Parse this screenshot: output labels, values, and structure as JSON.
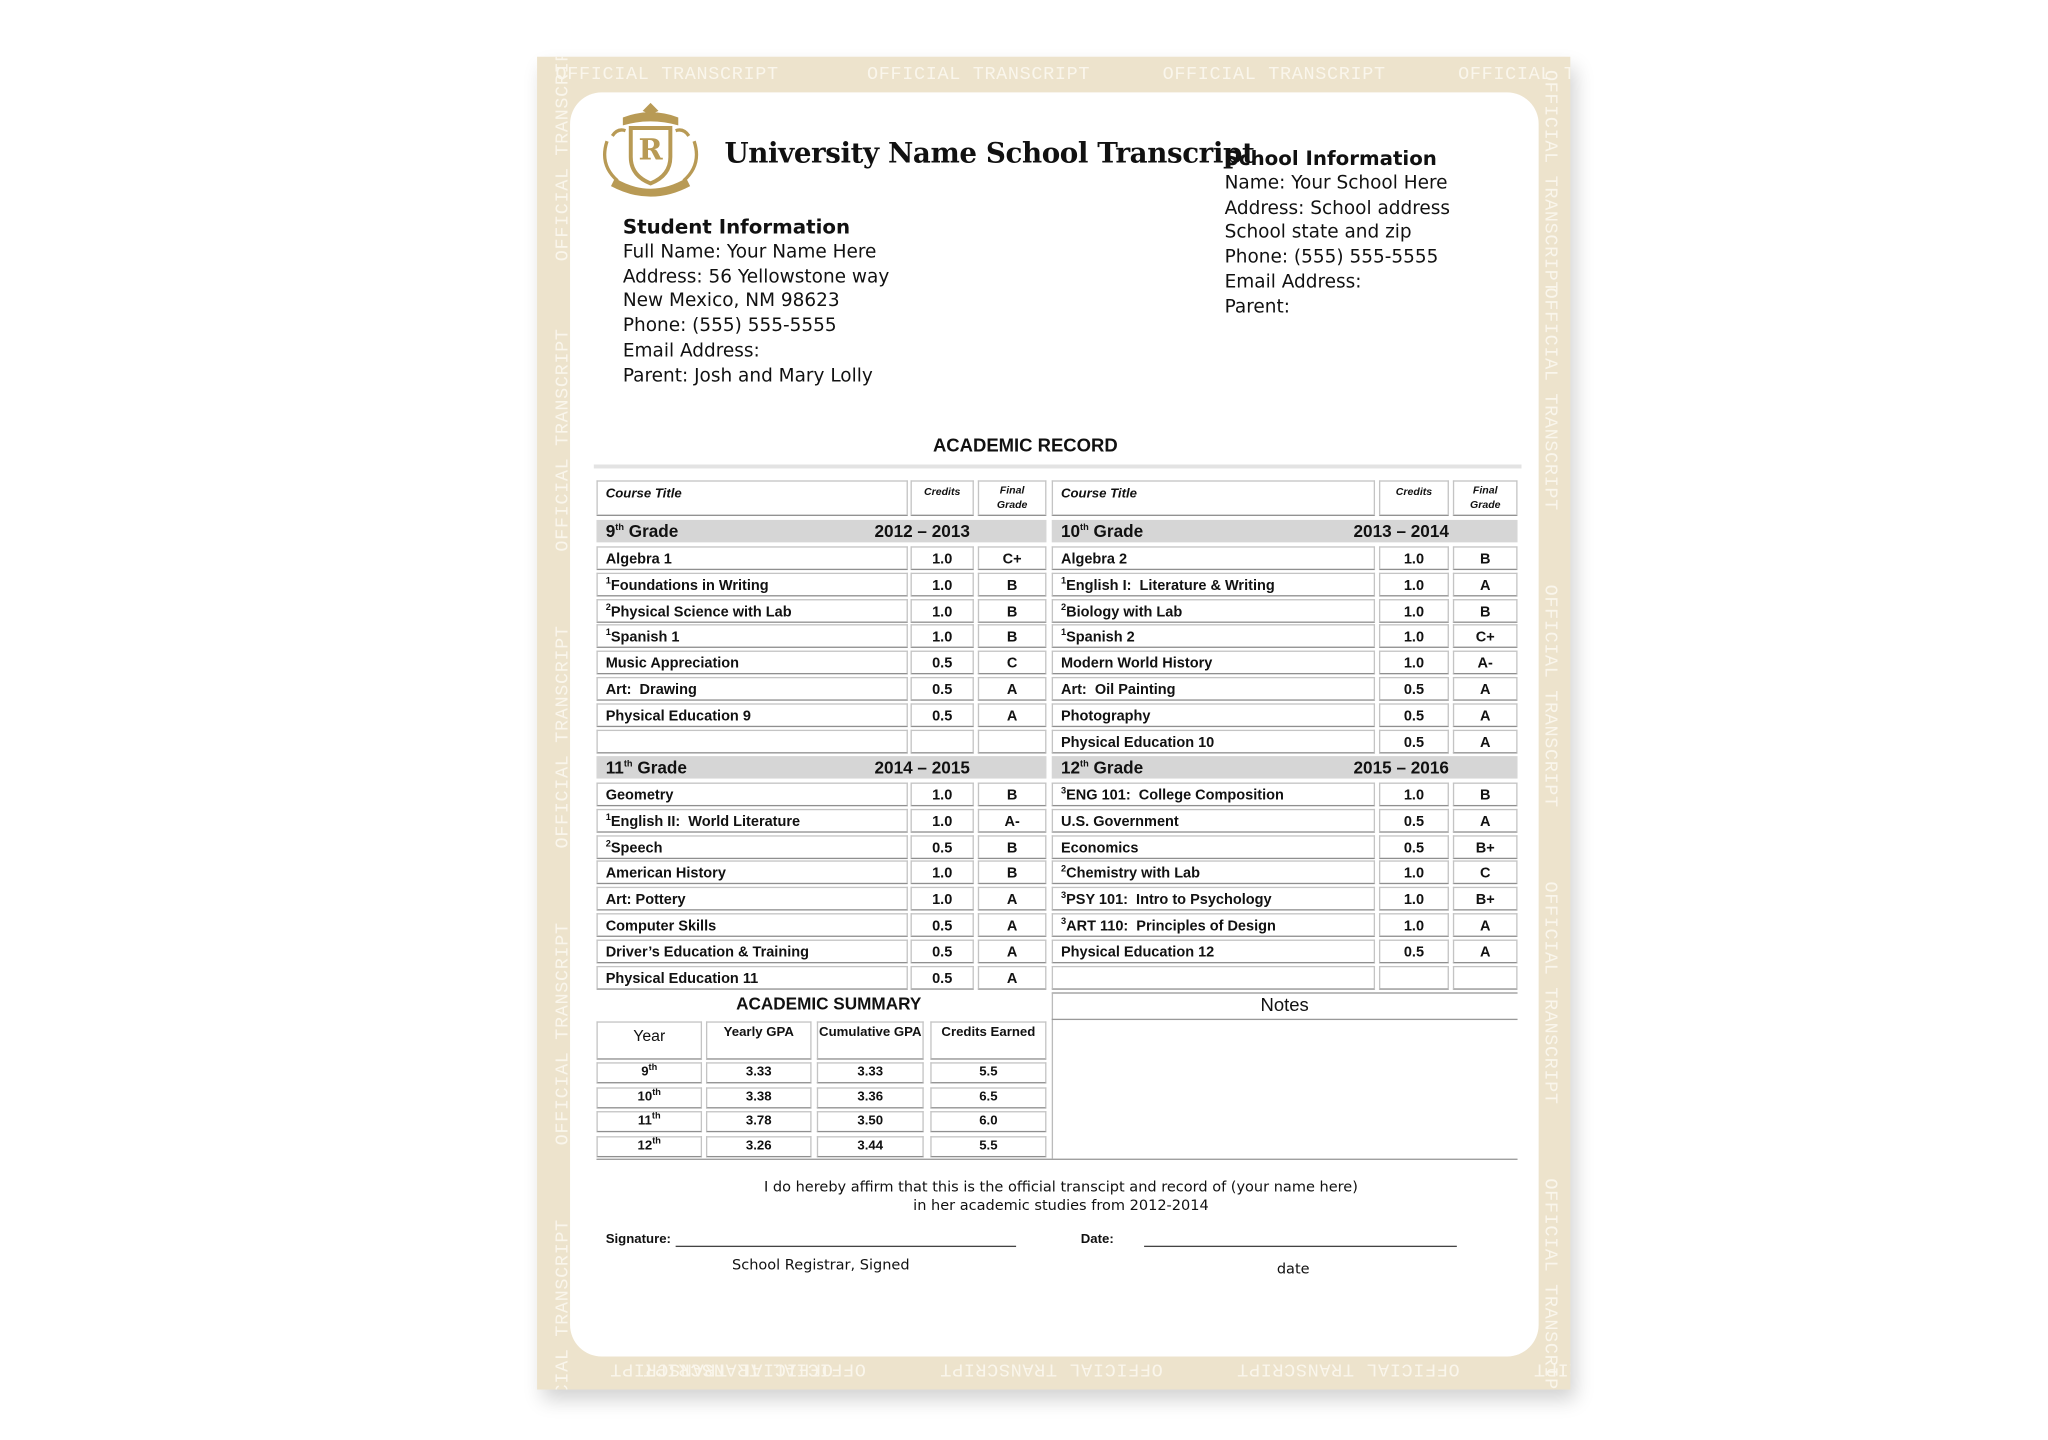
{
  "border_text": "OFFICIAL TRANSCRIPT",
  "logo_letter": "R",
  "header": {
    "title": "University Name School Transcript"
  },
  "student": {
    "heading": "Student Information",
    "lines": [
      "Full Name: Your Name Here",
      "Address: 56 Yellowstone way",
      "New Mexico, NM 98623",
      "Phone: (555) 555-5555",
      "Email Address:",
      "Parent: Josh and Mary Lolly"
    ]
  },
  "school": {
    "heading": "School Information",
    "lines": [
      "Name: Your School Here",
      "Address: School address",
      "School state and zip",
      "Phone: (555) 555-5555",
      "Email Address:",
      "Parent:"
    ]
  },
  "record": {
    "title": "ACADEMIC RECORD",
    "headers": {
      "course": "Course Title",
      "credits": "Credits",
      "grade": "Final Grade"
    },
    "blocks": [
      {
        "grade": "9",
        "suffix": "th",
        "label": "Grade",
        "years": "2012 – 2013",
        "courses": [
          {
            "title": "Algebra 1",
            "credits": "1.0",
            "grade": "C+"
          },
          {
            "note": "1",
            "title": "Foundations in Writing",
            "credits": "1.0",
            "grade": "B"
          },
          {
            "note": "2",
            "title": "Physical Science with Lab",
            "credits": "1.0",
            "grade": "B"
          },
          {
            "note": "1",
            "title": "Spanish 1",
            "credits": "1.0",
            "grade": "B"
          },
          {
            "title": "Music Appreciation",
            "credits": "0.5",
            "grade": "C"
          },
          {
            "title": "Art:  Drawing",
            "credits": "0.5",
            "grade": "A"
          },
          {
            "title": "Physical Education 9",
            "credits": "0.5",
            "grade": "A"
          }
        ]
      },
      {
        "grade": "10",
        "suffix": "th",
        "label": "Grade",
        "years": "2013 – 2014",
        "courses": [
          {
            "title": "Algebra 2",
            "credits": "1.0",
            "grade": "B"
          },
          {
            "note": "1",
            "title": "English I:  Literature & Writing",
            "credits": "1.0",
            "grade": "A"
          },
          {
            "note": "2",
            "title": "Biology with Lab",
            "credits": "1.0",
            "grade": "B"
          },
          {
            "note": "1",
            "title": "Spanish 2",
            "credits": "1.0",
            "grade": "C+"
          },
          {
            "title": "Modern World History",
            "credits": "1.0",
            "grade": "A-"
          },
          {
            "title": "Art:  Oil Painting",
            "credits": "0.5",
            "grade": "A"
          },
          {
            "title": "Photography",
            "credits": "0.5",
            "grade": "A"
          },
          {
            "title": "Physical Education 10",
            "credits": "0.5",
            "grade": "A"
          }
        ]
      },
      {
        "grade": "11",
        "suffix": "th",
        "label": "Grade",
        "years": "2014 – 2015",
        "courses": [
          {
            "title": "Geometry",
            "credits": "1.0",
            "grade": "B"
          },
          {
            "note": "1",
            "title": "English II:  World Literature",
            "credits": "1.0",
            "grade": "A-"
          },
          {
            "note": "2",
            "title": "Speech",
            "credits": "0.5",
            "grade": "B"
          },
          {
            "title": "American History",
            "credits": "1.0",
            "grade": "B"
          },
          {
            "title": "Art: Pottery",
            "credits": "1.0",
            "grade": "A"
          },
          {
            "title": "Computer Skills",
            "credits": "0.5",
            "grade": "A"
          },
          {
            "title": "Driver’s Education & Training",
            "credits": "0.5",
            "grade": "A"
          },
          {
            "title": "Physical Education 11",
            "credits": "0.5",
            "grade": "A"
          }
        ]
      },
      {
        "grade": "12",
        "suffix": "th",
        "label": "Grade",
        "years": "2015 – 2016",
        "courses": [
          {
            "note": "3",
            "title": "ENG 101:  College Composition",
            "credits": "1.0",
            "grade": "B"
          },
          {
            "title": "U.S. Government",
            "credits": "0.5",
            "grade": "A"
          },
          {
            "title": "Economics",
            "credits": "0.5",
            "grade": "B+"
          },
          {
            "note": "2",
            "title": "Chemistry with Lab",
            "credits": "1.0",
            "grade": "C"
          },
          {
            "note": "3",
            "title": "PSY 101:  Intro to Psychology",
            "credits": "1.0",
            "grade": "B+"
          },
          {
            "note": "3",
            "title": "ART 110:  Principles of Design",
            "credits": "1.0",
            "grade": "A"
          },
          {
            "title": "Physical Education 12",
            "credits": "0.5",
            "grade": "A"
          }
        ]
      }
    ]
  },
  "summary": {
    "title": "ACADEMIC SUMMARY",
    "headers": [
      "Year",
      "Yearly GPA",
      "Cumulative GPA",
      "Credits Earned"
    ],
    "rows": [
      {
        "year": "9",
        "suffix": "th",
        "yearly": "3.33",
        "cumulative": "3.33",
        "credits": "5.5"
      },
      {
        "year": "10",
        "suffix": "th",
        "yearly": "3.38",
        "cumulative": "3.36",
        "credits": "6.5"
      },
      {
        "year": "11",
        "suffix": "th",
        "yearly": "3.78",
        "cumulative": "3.50",
        "credits": "6.0"
      },
      {
        "year": "12",
        "suffix": "th",
        "yearly": "3.26",
        "cumulative": "3.44",
        "credits": "5.5"
      }
    ]
  },
  "notes": {
    "title": "Notes"
  },
  "affirmation": [
    "I do hereby affirm that this is the official transcipt and record of (your name here)",
    "in her academic studies from 2012-2014"
  ],
  "signature": {
    "label": "Signature:",
    "caption": "School Registrar, Signed"
  },
  "date": {
    "label": "Date:",
    "caption": "date"
  }
}
